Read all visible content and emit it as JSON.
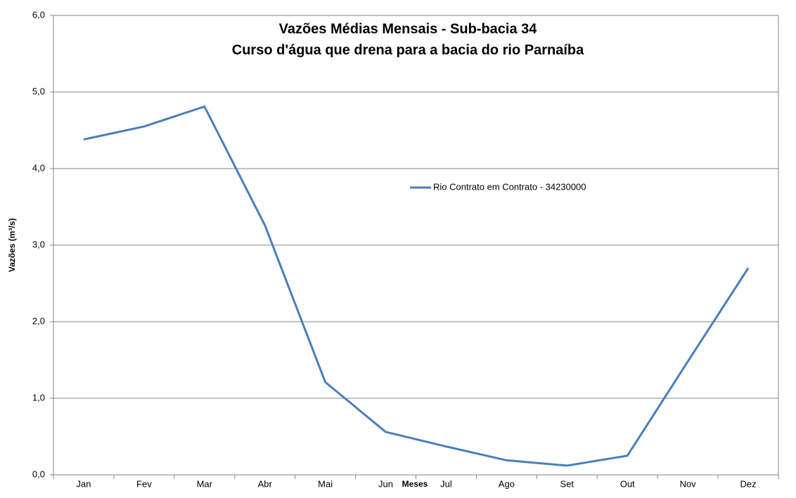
{
  "chart_data": {
    "type": "line",
    "title": "Vazões Médias Mensais - Sub-bacia 34",
    "subtitle": "Curso d'água que drena para a bacia do rio Parnaíba",
    "x_label": "Meses",
    "y_label": "Vazões (m³/s)",
    "categories": [
      "Jan",
      "Fev",
      "Mar",
      "Abr",
      "Mai",
      "Jun",
      "Jul",
      "Ago",
      "Set",
      "Out",
      "Nov",
      "Dez"
    ],
    "series": [
      {
        "name": "Rio Contrato em Contrato - 34230000",
        "color": "#4a7ebb",
        "values": [
          4.38,
          4.55,
          4.81,
          3.26,
          1.21,
          0.56,
          0.37,
          0.19,
          0.12,
          0.25,
          1.48,
          2.7
        ]
      }
    ],
    "ylim": [
      0,
      6
    ],
    "yticks": [
      {
        "value": 0,
        "label": "0,0"
      },
      {
        "value": 1,
        "label": "1,0"
      },
      {
        "value": 2,
        "label": "2,0"
      },
      {
        "value": 3,
        "label": "3,0"
      },
      {
        "value": 4,
        "label": "4,0"
      },
      {
        "value": 5,
        "label": "5,0"
      },
      {
        "value": 6,
        "label": "6,0"
      }
    ],
    "grid": true
  }
}
